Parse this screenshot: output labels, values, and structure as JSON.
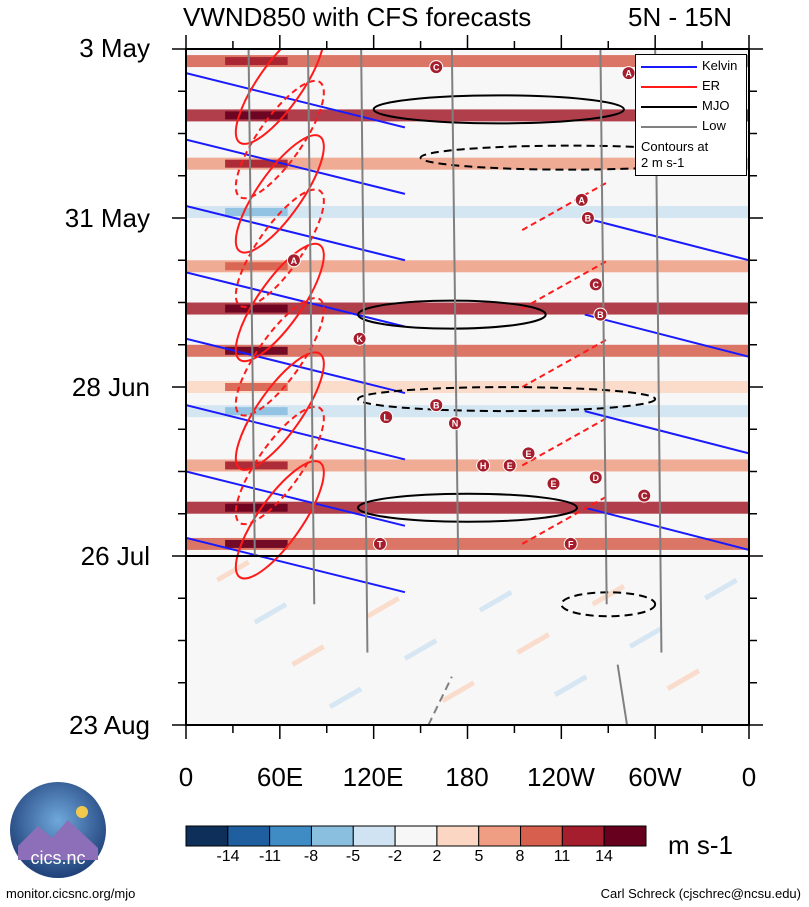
{
  "title": "VWND850 with CFS forecasts",
  "region": "5N - 15N",
  "chart_data": {
    "type": "heatmap",
    "title": "VWND850 with CFS forecasts",
    "subtitle": "5N - 15N",
    "y_tick_labels": [
      "3 May",
      "31 May",
      "28 Jun",
      "26 Jul",
      "23 Aug"
    ],
    "x_tick_labels": [
      "0",
      "60E",
      "120E",
      "180",
      "120W",
      "60W",
      "0"
    ],
    "x_range": [
      0,
      360
    ],
    "y_range_days": [
      0,
      112
    ],
    "forecast_start_day": 84,
    "colorbar": {
      "labels": [
        "-14",
        "-11",
        "-8",
        "-5",
        "-2",
        "2",
        "5",
        "8",
        "11",
        "14"
      ],
      "levels": [
        -14,
        -11,
        -8,
        -5,
        -2,
        2,
        5,
        8,
        11,
        14
      ],
      "colors": [
        "#0d2f5a",
        "#1f5f9f",
        "#3f8cc4",
        "#8bbfe0",
        "#cfe3f2",
        "#f7f7f7",
        "#fbd6c2",
        "#ef9e83",
        "#d65f4d",
        "#a51e2d",
        "#67001f"
      ],
      "units": "m s-1"
    },
    "legend": [
      {
        "name": "Kelvin",
        "color": "#1a1aff"
      },
      {
        "name": "ER",
        "color": "#ff1a1a"
      },
      {
        "name": "MJO",
        "color": "#000000"
      },
      {
        "name": "Low",
        "color": "#808080"
      }
    ],
    "legend_note": [
      "Contours at",
      "2 m s-1"
    ],
    "bands": [
      {
        "day": 2,
        "value": 8
      },
      {
        "day": 11,
        "value": 12
      },
      {
        "day": 19,
        "value": 6
      },
      {
        "day": 27,
        "value": -3
      },
      {
        "day": 36,
        "value": 5
      },
      {
        "day": 43,
        "value": 11
      },
      {
        "day": 50,
        "value": 9
      },
      {
        "day": 56,
        "value": 4
      },
      {
        "day": 60,
        "value": -3
      },
      {
        "day": 69,
        "value": 7
      },
      {
        "day": 76,
        "value": 12
      },
      {
        "day": 82,
        "value": 10
      }
    ],
    "markers": [
      {
        "label": "C",
        "lon": 160,
        "day": 3
      },
      {
        "label": "A",
        "lon": 283,
        "day": 4
      },
      {
        "label": "A",
        "lon": 253,
        "day": 25
      },
      {
        "label": "B",
        "lon": 257,
        "day": 28
      },
      {
        "label": "A",
        "lon": 69,
        "day": 35
      },
      {
        "label": "C",
        "lon": 262,
        "day": 39
      },
      {
        "label": "B",
        "lon": 265,
        "day": 44
      },
      {
        "label": "K",
        "lon": 111,
        "day": 48
      },
      {
        "label": "B",
        "lon": 160,
        "day": 59
      },
      {
        "label": "L",
        "lon": 128,
        "day": 61
      },
      {
        "label": "N",
        "lon": 172,
        "day": 62
      },
      {
        "label": "E",
        "lon": 219,
        "day": 67
      },
      {
        "label": "H",
        "lon": 190,
        "day": 69
      },
      {
        "label": "E",
        "lon": 207,
        "day": 69
      },
      {
        "label": "D",
        "lon": 262,
        "day": 71
      },
      {
        "label": "E",
        "lon": 235,
        "day": 72
      },
      {
        "label": "C",
        "lon": 293,
        "day": 74
      },
      {
        "label": "F",
        "lon": 246,
        "day": 82
      },
      {
        "label": "T",
        "lon": 124,
        "day": 82
      }
    ]
  },
  "units_label": "m s-1",
  "logo_text": "cics.nc",
  "site": "monitor.cicsnc.org/mjo",
  "credit": "Carl Schreck (cjschrec@ncsu.edu)"
}
